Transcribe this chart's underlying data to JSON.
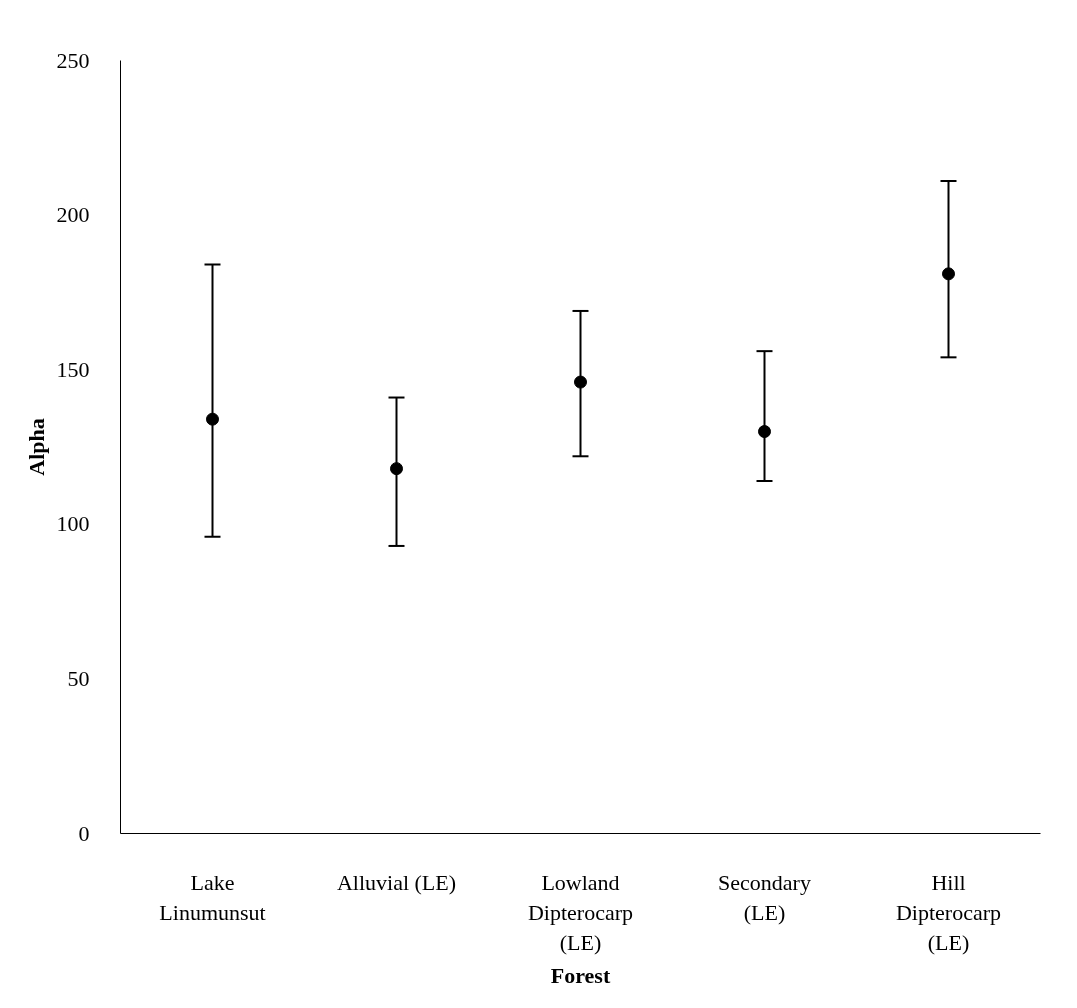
{
  "chart_data": {
    "type": "scatter",
    "xlabel": "Forest",
    "ylabel": "Alpha",
    "categories": [
      "Lake\nLinumunsut",
      "Alluvial (LE)",
      "Lowland\nDipterocarp\n(LE)",
      "Secondary\n(LE)",
      "Hill\nDipterocarp\n(LE)"
    ],
    "values": [
      134,
      118,
      146,
      130,
      181
    ],
    "errors": [
      [
        96,
        184
      ],
      [
        93,
        141
      ],
      [
        122,
        169
      ],
      [
        114,
        156
      ],
      [
        154,
        211
      ]
    ],
    "color": "#000000",
    "marker": "circle",
    "ylim": [
      0,
      250
    ],
    "yticks": [
      0,
      50,
      100,
      150,
      200,
      250
    ],
    "grid": false
  }
}
